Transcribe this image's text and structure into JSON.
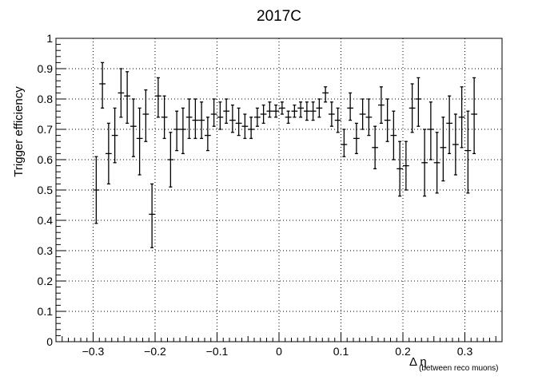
{
  "chart_data": {
    "type": "scatter",
    "title": "2017C",
    "xlabel_main": "Δ η",
    "xlabel_sub": "(between reco muons)",
    "ylabel": "Trigger efficiency",
    "xlim": [
      -0.36,
      0.36
    ],
    "ylim": [
      0,
      1
    ],
    "x_ticks": [
      -0.3,
      -0.2,
      -0.1,
      0,
      0.1,
      0.2,
      0.3
    ],
    "x_tick_labels": [
      "−0.3",
      "−0.2",
      "−0.1",
      "0",
      "0.1",
      "0.2",
      "0.3"
    ],
    "y_ticks": [
      0,
      0.1,
      0.2,
      0.3,
      0.4,
      0.5,
      0.6,
      0.7,
      0.8,
      0.9,
      1
    ],
    "y_tick_labels": [
      "0",
      "0.1",
      "0.2",
      "0.3",
      "0.4",
      "0.5",
      "0.6",
      "0.7",
      "0.8",
      "0.9",
      "1"
    ],
    "grid": true,
    "bin_half_width": 0.005,
    "series": [
      {
        "points": [
          {
            "x": -0.295,
            "y": 0.5,
            "lo": 0.39,
            "hi": 0.61
          },
          {
            "x": -0.285,
            "y": 0.85,
            "lo": 0.77,
            "hi": 0.92
          },
          {
            "x": -0.275,
            "y": 0.62,
            "lo": 0.52,
            "hi": 0.72
          },
          {
            "x": -0.265,
            "y": 0.68,
            "lo": 0.59,
            "hi": 0.77
          },
          {
            "x": -0.255,
            "y": 0.82,
            "lo": 0.74,
            "hi": 0.9
          },
          {
            "x": -0.245,
            "y": 0.81,
            "lo": 0.72,
            "hi": 0.89
          },
          {
            "x": -0.235,
            "y": 0.71,
            "lo": 0.61,
            "hi": 0.8
          },
          {
            "x": -0.225,
            "y": 0.67,
            "lo": 0.55,
            "hi": 0.77
          },
          {
            "x": -0.215,
            "y": 0.75,
            "lo": 0.66,
            "hi": 0.83
          },
          {
            "x": -0.205,
            "y": 0.42,
            "lo": 0.31,
            "hi": 0.52
          },
          {
            "x": -0.195,
            "y": 0.81,
            "lo": 0.74,
            "hi": 0.87
          },
          {
            "x": -0.185,
            "y": 0.74,
            "lo": 0.67,
            "hi": 0.81
          },
          {
            "x": -0.175,
            "y": 0.6,
            "lo": 0.51,
            "hi": 0.69
          },
          {
            "x": -0.165,
            "y": 0.7,
            "lo": 0.63,
            "hi": 0.76
          },
          {
            "x": -0.155,
            "y": 0.7,
            "lo": 0.62,
            "hi": 0.77
          },
          {
            "x": -0.145,
            "y": 0.74,
            "lo": 0.67,
            "hi": 0.8
          },
          {
            "x": -0.135,
            "y": 0.73,
            "lo": 0.67,
            "hi": 0.8
          },
          {
            "x": -0.125,
            "y": 0.73,
            "lo": 0.67,
            "hi": 0.79
          },
          {
            "x": -0.115,
            "y": 0.68,
            "lo": 0.63,
            "hi": 0.74
          },
          {
            "x": -0.105,
            "y": 0.75,
            "lo": 0.71,
            "hi": 0.8
          },
          {
            "x": -0.095,
            "y": 0.74,
            "lo": 0.7,
            "hi": 0.79
          },
          {
            "x": -0.085,
            "y": 0.76,
            "lo": 0.72,
            "hi": 0.8
          },
          {
            "x": -0.075,
            "y": 0.73,
            "lo": 0.69,
            "hi": 0.78
          },
          {
            "x": -0.065,
            "y": 0.72,
            "lo": 0.68,
            "hi": 0.77
          },
          {
            "x": -0.055,
            "y": 0.71,
            "lo": 0.67,
            "hi": 0.75
          },
          {
            "x": -0.045,
            "y": 0.7,
            "lo": 0.67,
            "hi": 0.74
          },
          {
            "x": -0.035,
            "y": 0.74,
            "lo": 0.71,
            "hi": 0.77
          },
          {
            "x": -0.025,
            "y": 0.75,
            "lo": 0.72,
            "hi": 0.78
          },
          {
            "x": -0.015,
            "y": 0.76,
            "lo": 0.74,
            "hi": 0.79
          },
          {
            "x": -0.005,
            "y": 0.76,
            "lo": 0.74,
            "hi": 0.78
          },
          {
            "x": 0.005,
            "y": 0.77,
            "lo": 0.75,
            "hi": 0.79
          },
          {
            "x": 0.015,
            "y": 0.74,
            "lo": 0.72,
            "hi": 0.76
          },
          {
            "x": 0.025,
            "y": 0.76,
            "lo": 0.74,
            "hi": 0.78
          },
          {
            "x": 0.035,
            "y": 0.77,
            "lo": 0.74,
            "hi": 0.79
          },
          {
            "x": 0.045,
            "y": 0.76,
            "lo": 0.73,
            "hi": 0.79
          },
          {
            "x": 0.055,
            "y": 0.76,
            "lo": 0.73,
            "hi": 0.79
          },
          {
            "x": 0.065,
            "y": 0.77,
            "lo": 0.74,
            "hi": 0.8
          },
          {
            "x": 0.075,
            "y": 0.82,
            "lo": 0.79,
            "hi": 0.84
          },
          {
            "x": 0.085,
            "y": 0.75,
            "lo": 0.71,
            "hi": 0.79
          },
          {
            "x": 0.095,
            "y": 0.73,
            "lo": 0.69,
            "hi": 0.77
          },
          {
            "x": 0.105,
            "y": 0.65,
            "lo": 0.61,
            "hi": 0.7
          },
          {
            "x": 0.115,
            "y": 0.77,
            "lo": 0.73,
            "hi": 0.82
          },
          {
            "x": 0.125,
            "y": 0.67,
            "lo": 0.62,
            "hi": 0.72
          },
          {
            "x": 0.135,
            "y": 0.75,
            "lo": 0.7,
            "hi": 0.8
          },
          {
            "x": 0.145,
            "y": 0.74,
            "lo": 0.68,
            "hi": 0.8
          },
          {
            "x": 0.155,
            "y": 0.64,
            "lo": 0.57,
            "hi": 0.71
          },
          {
            "x": 0.165,
            "y": 0.78,
            "lo": 0.72,
            "hi": 0.84
          },
          {
            "x": 0.175,
            "y": 0.73,
            "lo": 0.66,
            "hi": 0.8
          },
          {
            "x": 0.185,
            "y": 0.68,
            "lo": 0.6,
            "hi": 0.76
          },
          {
            "x": 0.195,
            "y": 0.57,
            "lo": 0.48,
            "hi": 0.66
          },
          {
            "x": 0.205,
            "y": 0.58,
            "lo": 0.5,
            "hi": 0.66
          },
          {
            "x": 0.215,
            "y": 0.77,
            "lo": 0.69,
            "hi": 0.85
          },
          {
            "x": 0.225,
            "y": 0.8,
            "lo": 0.71,
            "hi": 0.87
          },
          {
            "x": 0.235,
            "y": 0.59,
            "lo": 0.48,
            "hi": 0.7
          },
          {
            "x": 0.245,
            "y": 0.7,
            "lo": 0.6,
            "hi": 0.79
          },
          {
            "x": 0.255,
            "y": 0.59,
            "lo": 0.49,
            "hi": 0.69
          },
          {
            "x": 0.265,
            "y": 0.64,
            "lo": 0.53,
            "hi": 0.74
          },
          {
            "x": 0.275,
            "y": 0.72,
            "lo": 0.62,
            "hi": 0.81
          },
          {
            "x": 0.285,
            "y": 0.65,
            "lo": 0.55,
            "hi": 0.75
          },
          {
            "x": 0.295,
            "y": 0.74,
            "lo": 0.64,
            "hi": 0.84
          },
          {
            "x": 0.305,
            "y": 0.63,
            "lo": 0.49,
            "hi": 0.76
          },
          {
            "x": 0.315,
            "y": 0.75,
            "lo": 0.62,
            "hi": 0.87
          }
        ]
      }
    ]
  }
}
